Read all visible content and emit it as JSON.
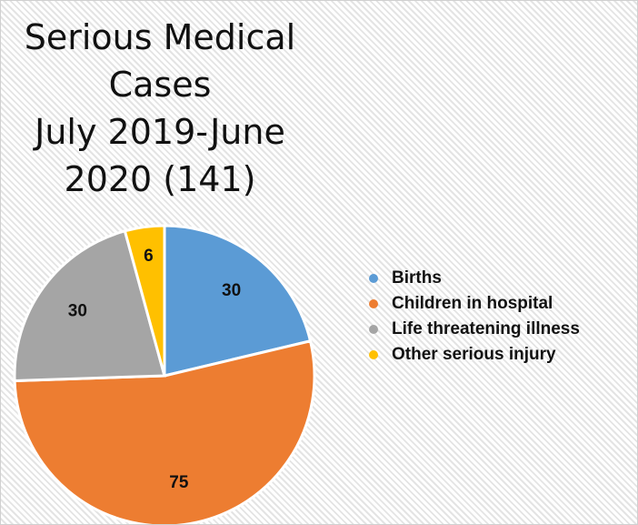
{
  "chart_data": {
    "type": "pie",
    "title": [
      "Serious Medical Cases",
      "July 2019-June 2020 (141)"
    ],
    "categories": [
      "Births",
      "Children in hospital",
      "Life threatening illness",
      "Other serious injury"
    ],
    "values": [
      30,
      75,
      30,
      6
    ],
    "colors": [
      "#5b9bd5",
      "#ed7d31",
      "#a5a5a5",
      "#ffc000"
    ],
    "legend": "right"
  }
}
